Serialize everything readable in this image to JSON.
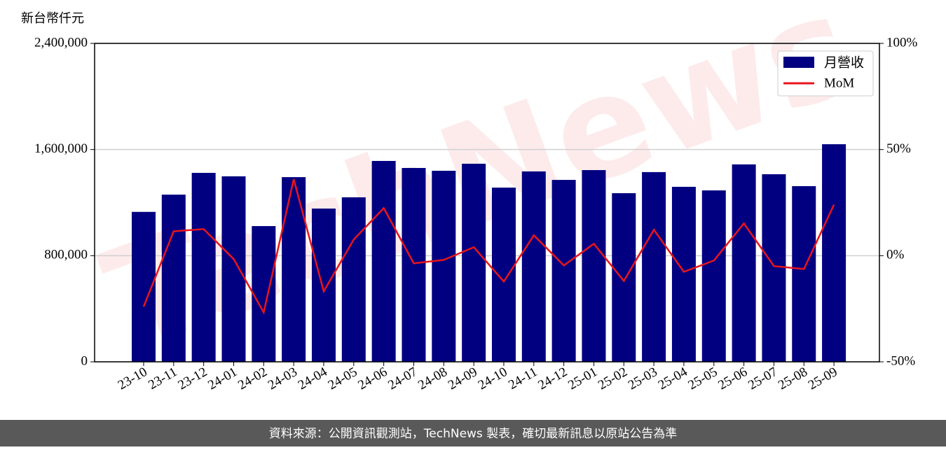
{
  "chart_data": {
    "type": "bar_line",
    "y_label": "新台幣仟元",
    "watermark": "TechNews",
    "footer": "資料來源：公開資訊觀測站，TechNews 製表，確切最新訊息以原站公告為準",
    "categories": [
      "23-10",
      "23-11",
      "23-12",
      "24-01",
      "24-02",
      "24-03",
      "24-04",
      "24-05",
      "24-06",
      "24-07",
      "24-08",
      "24-09",
      "24-10",
      "24-11",
      "24-12",
      "25-01",
      "25-02",
      "25-03",
      "25-04",
      "25-05",
      "25-06",
      "25-07",
      "25-08",
      "25-09"
    ],
    "series": [
      {
        "name": "月營收",
        "color": "#000080",
        "values": [
          1130000,
          1260000,
          1424000,
          1398000,
          1023000,
          1392000,
          1155000,
          1240000,
          1514000,
          1461000,
          1440000,
          1493000,
          1313000,
          1435000,
          1371000,
          1445000,
          1271000,
          1430000,
          1319000,
          1292000,
          1488000,
          1414000,
          1324000,
          1640000
        ]
      },
      {
        "name": "MoM",
        "color": "#e8141c",
        "axis": "y2",
        "values": [
          -24,
          11.5,
          12.5,
          -1.6,
          -26.7,
          36,
          -16.8,
          7.6,
          22.4,
          -3.6,
          -2,
          4,
          -12.2,
          9.6,
          -4.6,
          5.6,
          -11.9,
          12.2,
          -7.6,
          -2.3,
          15.2,
          -4.9,
          -6.3,
          24
        ]
      }
    ],
    "ylim": [
      0,
      2400000
    ],
    "yticks": [
      0,
      {
        "value": 800000,
        "label": "800,000"
      },
      {
        "value": 1600000,
        "label": "1,600,000"
      },
      {
        "value": 2400000,
        "label": "2,400,000"
      }
    ],
    "y2lim": [
      -50,
      100
    ],
    "y2ticks": [
      {
        "value": -50,
        "label": "-50%"
      },
      {
        "value": 0,
        "label": "0%"
      },
      {
        "value": 50,
        "label": "50%"
      },
      {
        "value": 100,
        "label": "100%"
      }
    ],
    "grid": true,
    "legend": "upper right"
  }
}
